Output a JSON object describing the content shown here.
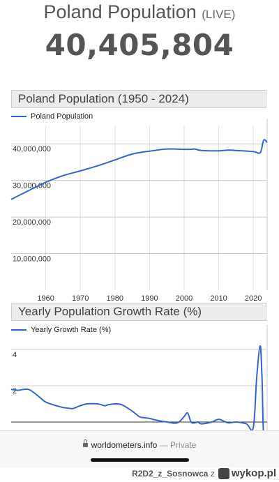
{
  "header": {
    "title": "Poland Population",
    "live_label": "(LIVE)",
    "counter": "40,405,804"
  },
  "chart_data": [
    {
      "type": "line",
      "title": "Poland Population (1950 - 2024)",
      "legend": "top-left",
      "grid": true,
      "series": [
        {
          "name": "Poland Population",
          "color": "#3366cc",
          "x": [
            1950,
            1955,
            1960,
            1965,
            1970,
            1975,
            1980,
            1985,
            1990,
            1995,
            2000,
            2002,
            2003,
            2005,
            2010,
            2013,
            2015,
            2020,
            2022,
            2023,
            2024
          ],
          "y": [
            24800000,
            27200000,
            29500000,
            31300000,
            32600000,
            34000000,
            35600000,
            37200000,
            38000000,
            38600000,
            38500000,
            38500000,
            38600000,
            38200000,
            38100000,
            38300000,
            38200000,
            37900000,
            37600000,
            41000000,
            40400000
          ]
        }
      ],
      "x_ticks": [
        "1960",
        "1970",
        "1980",
        "1990",
        "2000",
        "2010",
        "2020"
      ],
      "y_ticks": [
        "10,000,000",
        "20,000,000",
        "30,000,000",
        "40,000,000"
      ],
      "xlim": [
        1950,
        2024
      ],
      "ylim": [
        0,
        45000000
      ]
    },
    {
      "type": "line",
      "title": "Yearly Population Growth Rate (%)",
      "legend": "top-left",
      "grid": true,
      "series": [
        {
          "name": "Yearly Growth Rate (%)",
          "color": "#3366cc",
          "x": [
            1950,
            1952,
            1955,
            1958,
            1960,
            1963,
            1965,
            1967,
            1968,
            1970,
            1972,
            1975,
            1977,
            1978,
            1980,
            1982,
            1985,
            1987,
            1988,
            1990,
            1992,
            1995,
            1998,
            2000,
            2001,
            2002,
            2003,
            2004,
            2005,
            2008,
            2010,
            2012,
            2013,
            2015,
            2018,
            2020,
            2021,
            2022,
            2022.5,
            2023,
            2024
          ],
          "y": [
            1.8,
            1.75,
            1.8,
            1.4,
            1.1,
            0.9,
            0.8,
            0.75,
            0.75,
            0.9,
            1.0,
            1.0,
            0.9,
            0.95,
            1.0,
            0.95,
            0.6,
            0.3,
            0.25,
            0.2,
            0.1,
            0.0,
            -0.05,
            0.3,
            0.5,
            0.0,
            -0.05,
            0.0,
            -0.1,
            0.0,
            0.15,
            0.0,
            -0.05,
            0.0,
            -0.1,
            -0.3,
            2.5,
            4.2,
            2.5,
            -0.8,
            -1.0
          ]
        }
      ],
      "y_ticks": [
        "2",
        "4"
      ],
      "xlim": [
        1950,
        2024
      ],
      "ylim": [
        -1,
        5
      ]
    }
  ],
  "browser": {
    "domain": "worldometers.info",
    "privacy": "— Private"
  },
  "watermark": {
    "user": "R2D2_z_Sosnowca",
    "suffix": "z",
    "brand": "wykop.pl"
  }
}
